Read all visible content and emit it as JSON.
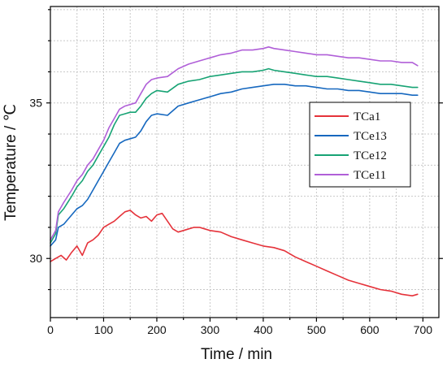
{
  "chart_data": {
    "type": "line",
    "title": "",
    "xlabel": "Time / min",
    "ylabel": "Temperature / ℃",
    "xlim": [
      0,
      730
    ],
    "ylim": [
      28.1,
      38.1
    ],
    "xticks": [
      0,
      100,
      200,
      300,
      400,
      500,
      600,
      700
    ],
    "yticks": [
      30,
      35
    ],
    "xtick_labels": [
      "0",
      "100",
      "200",
      "300",
      "400",
      "500",
      "600",
      "700"
    ],
    "ytick_labels": [
      "30",
      "35"
    ],
    "grid": true,
    "legend_position": "right-middle",
    "series": [
      {
        "name": "TCa1",
        "color": "#e5323a",
        "points": [
          [
            0,
            29.9
          ],
          [
            10,
            30.0
          ],
          [
            20,
            30.1
          ],
          [
            30,
            29.95
          ],
          [
            40,
            30.2
          ],
          [
            50,
            30.4
          ],
          [
            60,
            30.1
          ],
          [
            70,
            30.5
          ],
          [
            80,
            30.6
          ],
          [
            90,
            30.75
          ],
          [
            100,
            31.0
          ],
          [
            110,
            31.1
          ],
          [
            120,
            31.2
          ],
          [
            130,
            31.35
          ],
          [
            140,
            31.5
          ],
          [
            150,
            31.55
          ],
          [
            160,
            31.4
          ],
          [
            170,
            31.3
          ],
          [
            180,
            31.35
          ],
          [
            190,
            31.2
          ],
          [
            200,
            31.4
          ],
          [
            210,
            31.45
          ],
          [
            220,
            31.2
          ],
          [
            230,
            30.95
          ],
          [
            240,
            30.85
          ],
          [
            250,
            30.9
          ],
          [
            260,
            30.95
          ],
          [
            270,
            31.0
          ],
          [
            280,
            31.0
          ],
          [
            290,
            30.95
          ],
          [
            300,
            30.9
          ],
          [
            320,
            30.85
          ],
          [
            340,
            30.7
          ],
          [
            360,
            30.6
          ],
          [
            380,
            30.5
          ],
          [
            400,
            30.4
          ],
          [
            420,
            30.35
          ],
          [
            440,
            30.25
          ],
          [
            460,
            30.05
          ],
          [
            480,
            29.9
          ],
          [
            500,
            29.75
          ],
          [
            520,
            29.6
          ],
          [
            540,
            29.45
          ],
          [
            560,
            29.3
          ],
          [
            580,
            29.2
          ],
          [
            600,
            29.1
          ],
          [
            620,
            29.0
          ],
          [
            640,
            28.95
          ],
          [
            660,
            28.85
          ],
          [
            680,
            28.8
          ],
          [
            690,
            28.85
          ]
        ]
      },
      {
        "name": "TCe13",
        "color": "#1668bf",
        "points": [
          [
            0,
            30.4
          ],
          [
            10,
            30.6
          ],
          [
            15,
            31.0
          ],
          [
            25,
            31.1
          ],
          [
            40,
            31.4
          ],
          [
            50,
            31.6
          ],
          [
            60,
            31.7
          ],
          [
            70,
            31.9
          ],
          [
            80,
            32.2
          ],
          [
            90,
            32.5
          ],
          [
            100,
            32.8
          ],
          [
            110,
            33.1
          ],
          [
            120,
            33.4
          ],
          [
            130,
            33.7
          ],
          [
            140,
            33.8
          ],
          [
            150,
            33.85
          ],
          [
            160,
            33.9
          ],
          [
            170,
            34.1
          ],
          [
            180,
            34.4
          ],
          [
            190,
            34.6
          ],
          [
            200,
            34.65
          ],
          [
            220,
            34.6
          ],
          [
            240,
            34.9
          ],
          [
            260,
            35.0
          ],
          [
            280,
            35.1
          ],
          [
            300,
            35.2
          ],
          [
            320,
            35.3
          ],
          [
            340,
            35.35
          ],
          [
            360,
            35.45
          ],
          [
            380,
            35.5
          ],
          [
            400,
            35.55
          ],
          [
            420,
            35.6
          ],
          [
            440,
            35.6
          ],
          [
            460,
            35.55
          ],
          [
            480,
            35.55
          ],
          [
            500,
            35.5
          ],
          [
            520,
            35.45
          ],
          [
            540,
            35.45
          ],
          [
            560,
            35.4
          ],
          [
            580,
            35.4
          ],
          [
            600,
            35.35
          ],
          [
            620,
            35.3
          ],
          [
            640,
            35.3
          ],
          [
            660,
            35.3
          ],
          [
            680,
            35.25
          ],
          [
            690,
            35.25
          ]
        ]
      },
      {
        "name": "TCe12",
        "color": "#17a374",
        "points": [
          [
            0,
            30.5
          ],
          [
            10,
            30.8
          ],
          [
            15,
            31.4
          ],
          [
            25,
            31.6
          ],
          [
            40,
            32.0
          ],
          [
            50,
            32.3
          ],
          [
            60,
            32.5
          ],
          [
            70,
            32.8
          ],
          [
            80,
            33.0
          ],
          [
            90,
            33.3
          ],
          [
            100,
            33.6
          ],
          [
            110,
            33.9
          ],
          [
            120,
            34.3
          ],
          [
            130,
            34.6
          ],
          [
            140,
            34.65
          ],
          [
            150,
            34.7
          ],
          [
            160,
            34.7
          ],
          [
            170,
            34.9
          ],
          [
            180,
            35.15
          ],
          [
            190,
            35.3
          ],
          [
            200,
            35.4
          ],
          [
            220,
            35.35
          ],
          [
            240,
            35.6
          ],
          [
            260,
            35.7
          ],
          [
            280,
            35.75
          ],
          [
            300,
            35.85
          ],
          [
            320,
            35.9
          ],
          [
            340,
            35.95
          ],
          [
            360,
            36.0
          ],
          [
            380,
            36.0
          ],
          [
            400,
            36.05
          ],
          [
            410,
            36.1
          ],
          [
            420,
            36.05
          ],
          [
            440,
            36.0
          ],
          [
            460,
            35.95
          ],
          [
            480,
            35.9
          ],
          [
            500,
            35.85
          ],
          [
            520,
            35.85
          ],
          [
            540,
            35.8
          ],
          [
            560,
            35.75
          ],
          [
            580,
            35.7
          ],
          [
            600,
            35.65
          ],
          [
            620,
            35.6
          ],
          [
            640,
            35.6
          ],
          [
            660,
            35.55
          ],
          [
            680,
            35.5
          ],
          [
            690,
            35.5
          ]
        ]
      },
      {
        "name": "TCe11",
        "color": "#b05fd8",
        "points": [
          [
            0,
            30.6
          ],
          [
            10,
            30.9
          ],
          [
            15,
            31.5
          ],
          [
            25,
            31.8
          ],
          [
            40,
            32.2
          ],
          [
            50,
            32.5
          ],
          [
            60,
            32.7
          ],
          [
            70,
            33.0
          ],
          [
            80,
            33.2
          ],
          [
            90,
            33.5
          ],
          [
            100,
            33.8
          ],
          [
            110,
            34.2
          ],
          [
            120,
            34.5
          ],
          [
            130,
            34.8
          ],
          [
            140,
            34.9
          ],
          [
            150,
            34.95
          ],
          [
            160,
            35.0
          ],
          [
            170,
            35.3
          ],
          [
            180,
            35.6
          ],
          [
            190,
            35.75
          ],
          [
            200,
            35.8
          ],
          [
            220,
            35.85
          ],
          [
            240,
            36.1
          ],
          [
            260,
            36.25
          ],
          [
            280,
            36.35
          ],
          [
            300,
            36.45
          ],
          [
            320,
            36.55
          ],
          [
            340,
            36.6
          ],
          [
            360,
            36.7
          ],
          [
            380,
            36.7
          ],
          [
            400,
            36.75
          ],
          [
            410,
            36.8
          ],
          [
            420,
            36.75
          ],
          [
            440,
            36.7
          ],
          [
            460,
            36.65
          ],
          [
            480,
            36.6
          ],
          [
            500,
            36.55
          ],
          [
            520,
            36.55
          ],
          [
            540,
            36.5
          ],
          [
            560,
            36.45
          ],
          [
            580,
            36.45
          ],
          [
            600,
            36.4
          ],
          [
            620,
            36.35
          ],
          [
            640,
            36.35
          ],
          [
            660,
            36.3
          ],
          [
            680,
            36.3
          ],
          [
            690,
            36.2
          ]
        ]
      }
    ]
  }
}
